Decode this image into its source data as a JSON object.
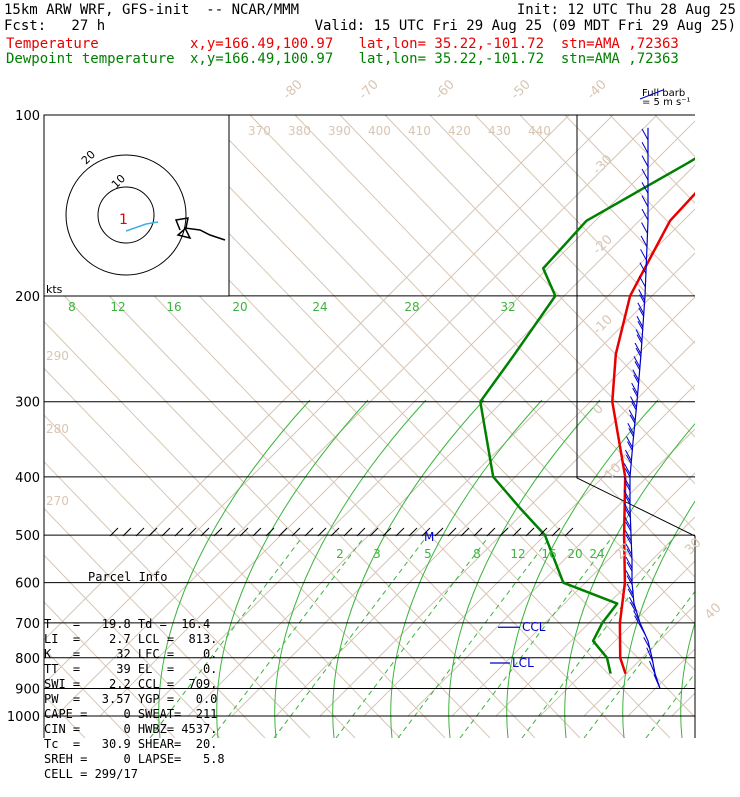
{
  "header": {
    "model": "15km ARW WRF, GFS-init  -- NCAR/MMM",
    "init": "Init: 12 UTC Thu 28 Aug 25",
    "fcst": "Fcst:   27 h",
    "valid": "Valid: 15 UTC Fri 29 Aug 25 (09 MDT Fri 29 Aug 25)",
    "temp_label": "Temperature",
    "temp_info": "x,y=166.49,100.97   lat,lon= 35.22,-101.72  stn=AMA ,72363",
    "dew_label": "Dewpoint temperature",
    "dew_info": "x,y=166.49,100.97   lat,lon= 35.22,-101.72  stn=AMA ,72363",
    "barb_title": "Full barb",
    "barb_unit": "= 5 m s⁻¹"
  },
  "colors": {
    "temperature": "#e80000",
    "dewpoint": "#008000",
    "isotherm": "#d8c6b4",
    "mixing": "#3cb43c",
    "barb": "#0000c8"
  },
  "chart_data": {
    "type": "line",
    "y_axis": "pressure (hPa), log scale",
    "pressure_labels": [
      100,
      200,
      300,
      400,
      500,
      600,
      700,
      800,
      900,
      1000
    ],
    "series": [
      {
        "name": "Temperature",
        "points": [
          [
            100,
            -71
          ],
          [
            120,
            -74
          ],
          [
            150,
            -73
          ],
          [
            200,
            -65
          ],
          [
            250,
            -55
          ],
          [
            300,
            -45
          ],
          [
            400,
            -25
          ],
          [
            500,
            -12
          ],
          [
            600,
            -1
          ],
          [
            700,
            7
          ],
          [
            800,
            15
          ],
          [
            850,
            19.8
          ]
        ]
      },
      {
        "name": "Dewpoint temperature",
        "points": [
          [
            100,
            -75
          ],
          [
            120,
            -82
          ],
          [
            150,
            -92
          ],
          [
            180,
            -91
          ],
          [
            200,
            -82
          ],
          [
            250,
            -78
          ],
          [
            300,
            -75
          ],
          [
            400,
            -55
          ],
          [
            450,
            -42
          ],
          [
            500,
            -30
          ],
          [
            600,
            -15
          ],
          [
            650,
            2
          ],
          [
            700,
            3
          ],
          [
            750,
            5
          ],
          [
            800,
            12
          ],
          [
            850,
            16.4
          ]
        ]
      }
    ],
    "isotherm_labels_top": [
      "-80",
      "-70",
      "-60",
      "-50",
      "-40"
    ],
    "isotherm_labels_right": [
      "-30",
      "-20",
      "-10",
      "0",
      "10",
      "20",
      "30",
      "40"
    ],
    "potential_temp_labels_top": [
      "370",
      "380",
      "390",
      "400",
      "410",
      "420",
      "430",
      "440"
    ],
    "potential_temp_labels_left": [
      "290",
      "280",
      "270"
    ],
    "mixing_ratio_labels_200": [
      "8",
      "12",
      "16",
      "20",
      "24",
      "28",
      "32"
    ],
    "mixing_ratio_labels_550": [
      "2",
      "3",
      "5",
      "8",
      "12",
      "16",
      "20",
      "24"
    ],
    "hodograph": {
      "unit": "kts",
      "ring_labels": [
        "10",
        "20"
      ],
      "marker": "1",
      "storm_motion_label": "M"
    },
    "levels": {
      "ccl": {
        "label": "CCL",
        "pressure": 709
      },
      "lcl": {
        "label": "LCL",
        "pressure": 813
      }
    },
    "wind_barbs": "right side profile, 100-900 hPa"
  },
  "parcel_info": {
    "title": "Parcel Info",
    "rows": [
      "T   =   19.8 Td =  16.4",
      "LI  =    2.7 LCL =  813.",
      "K   =     32 LFC =    0.",
      "TT  =     39 EL  =    0.",
      "SWI =    2.2 CCL =  709.",
      "PW  =   3.57 YGP =   0.0",
      "CAPE =     0 SWEAT=  211",
      "CIN =      0 HWBZ= 4537.",
      "Tc  =   30.9 SHEAR=  20.",
      "SREH =     0 LAPSE=   5.8",
      "CELL = 299/17"
    ]
  }
}
